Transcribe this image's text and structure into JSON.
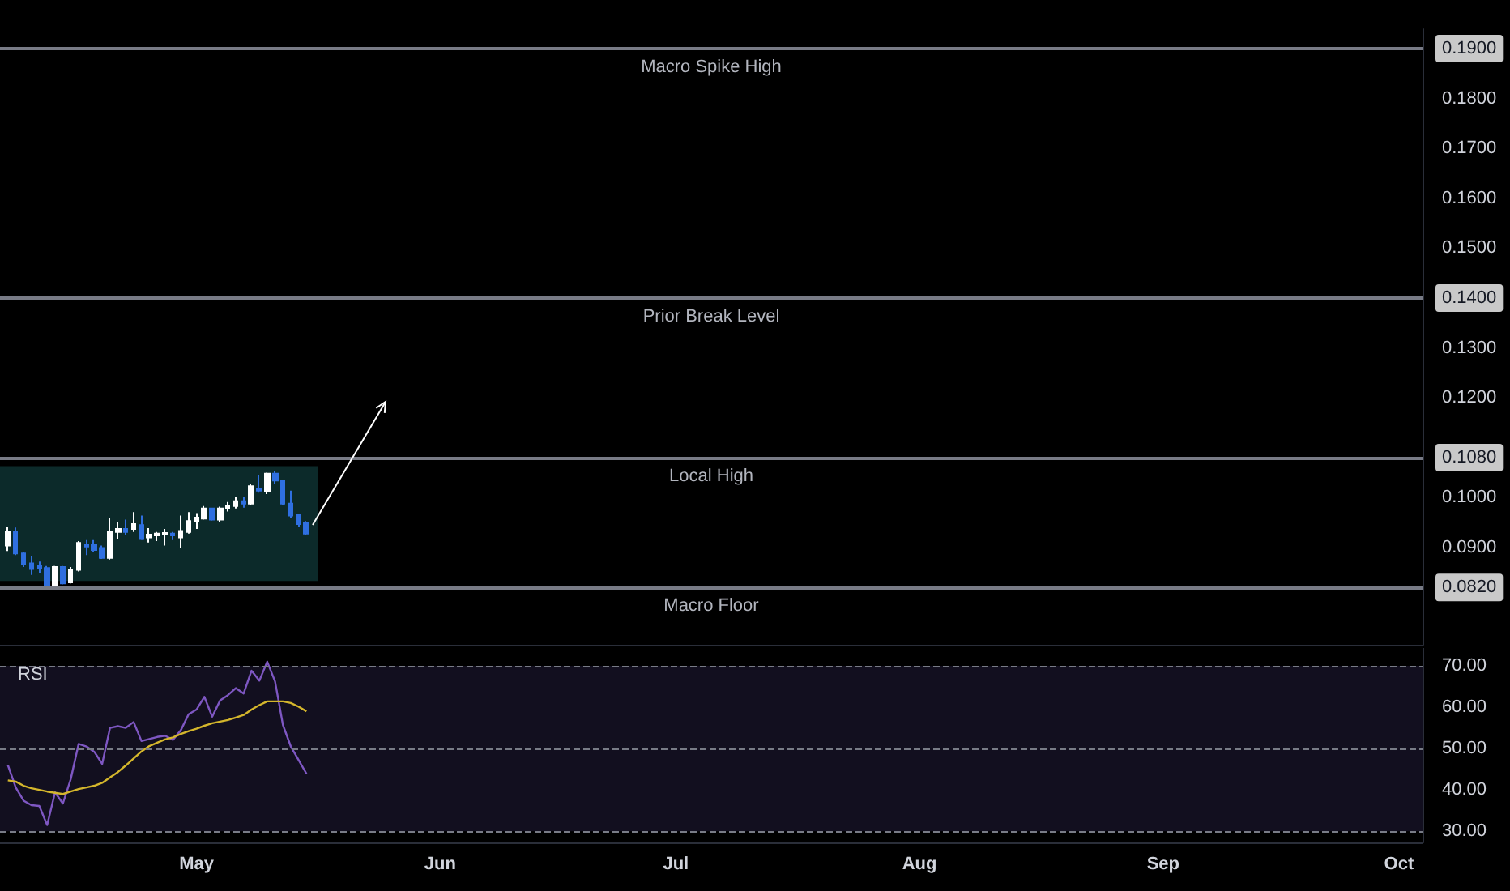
{
  "chart_data": [
    {
      "type": "candlestick",
      "tick_labels": "y",
      "x": [
        "--04-07",
        "--04-08",
        "--04-09",
        "--04-10",
        "--04-11",
        "--04-12",
        "--04-13",
        "--04-14",
        "--04-15",
        "--04-16",
        "--04-17",
        "--04-18",
        "--04-19",
        "--04-20",
        "--04-21",
        "--04-22",
        "--04-23",
        "--04-24",
        "--04-25",
        "--04-26",
        "--04-27",
        "--04-28",
        "--04-29",
        "--04-30",
        "--05-01",
        "--05-02",
        "--05-03",
        "--05-04",
        "--05-05",
        "--05-06",
        "--05-07",
        "--05-08",
        "--05-09",
        "--05-10",
        "--05-11",
        "--05-12",
        "--05-13",
        "--05-14",
        "--05-15"
      ],
      "ohlc": [
        [
          0.0904,
          0.0942,
          0.0893,
          0.0931
        ],
        [
          0.0931,
          0.094,
          0.0885,
          0.0888
        ],
        [
          0.0888,
          0.089,
          0.0861,
          0.0866
        ],
        [
          0.0868,
          0.0882,
          0.0845,
          0.0857
        ],
        [
          0.0863,
          0.0872,
          0.0848,
          0.0859
        ],
        [
          0.0859,
          0.0863,
          0.0818,
          0.0823
        ],
        [
          0.0823,
          0.0863,
          0.082,
          0.0861
        ],
        [
          0.0861,
          0.0863,
          0.0826,
          0.0828
        ],
        [
          0.083,
          0.0861,
          0.0828,
          0.0855
        ],
        [
          0.0855,
          0.0913,
          0.0852,
          0.0909
        ],
        [
          0.0906,
          0.0915,
          0.0885,
          0.0902
        ],
        [
          0.0906,
          0.0915,
          0.0891,
          0.0895
        ],
        [
          0.0899,
          0.0904,
          0.0877,
          0.0879
        ],
        [
          0.0879,
          0.096,
          0.0876,
          0.0931
        ],
        [
          0.0931,
          0.095,
          0.0917,
          0.0937
        ],
        [
          0.0937,
          0.0956,
          0.0926,
          0.0931
        ],
        [
          0.0937,
          0.0971,
          0.0931,
          0.0947
        ],
        [
          0.0945,
          0.0964,
          0.0915,
          0.0917
        ],
        [
          0.092,
          0.0939,
          0.091,
          0.0926
        ],
        [
          0.0924,
          0.0931,
          0.0913,
          0.0928
        ],
        [
          0.0926,
          0.0937,
          0.0904,
          0.0929
        ],
        [
          0.0928,
          0.0931,
          0.0915,
          0.0924
        ],
        [
          0.092,
          0.0964,
          0.0899,
          0.0933
        ],
        [
          0.0931,
          0.0971,
          0.0928,
          0.0953
        ],
        [
          0.0953,
          0.0969,
          0.0937,
          0.096
        ],
        [
          0.0958,
          0.0983,
          0.0956,
          0.0978
        ],
        [
          0.0978,
          0.098,
          0.0954,
          0.0956
        ],
        [
          0.0956,
          0.0982,
          0.0952,
          0.0978
        ],
        [
          0.0978,
          0.0991,
          0.0972,
          0.0983
        ],
        [
          0.0983,
          0.1001,
          0.0978,
          0.0993
        ],
        [
          0.0993,
          0.1001,
          0.098,
          0.0988
        ],
        [
          0.0988,
          0.1028,
          0.0985,
          0.1023
        ],
        [
          0.1018,
          0.1045,
          0.101,
          0.1014
        ],
        [
          0.1012,
          0.105,
          0.1007,
          0.1048
        ],
        [
          0.1048,
          0.1053,
          0.1028,
          0.1034
        ],
        [
          0.1034,
          0.1036,
          0.0985,
          0.0988
        ],
        [
          0.0988,
          0.1014,
          0.096,
          0.0964
        ],
        [
          0.0966,
          0.0967,
          0.0942,
          0.0947
        ],
        [
          0.0949,
          0.0953,
          0.0926,
          0.0928
        ]
      ],
      "xlim": [
        "--04-06",
        "--10-04"
      ],
      "ylim": [
        0.0705,
        0.1939
      ],
      "yticks": [
        {
          "value": 0.082,
          "label": "0.0820"
        },
        {
          "value": 0.09,
          "label": "0.0900"
        },
        {
          "value": 0.1,
          "label": "0.1000"
        },
        {
          "value": 0.108,
          "label": "0.1080"
        },
        {
          "value": 0.12,
          "label": "0.1200"
        },
        {
          "value": 0.13,
          "label": "0.1300"
        },
        {
          "value": 0.14,
          "label": "0.1400"
        },
        {
          "value": 0.15,
          "label": "0.1500"
        },
        {
          "value": 0.16,
          "label": "0.1600"
        },
        {
          "value": 0.17,
          "label": "0.1700"
        },
        {
          "value": 0.18,
          "label": "0.1800"
        },
        {
          "value": 0.19,
          "label": "0.1900"
        }
      ],
      "ref_lines": [
        {
          "axis": "y",
          "value": 0.19,
          "label": "Macro Spike High",
          "color": "#787b86"
        },
        {
          "axis": "y",
          "value": 0.14,
          "label": "Prior Break Level",
          "color": "#787b86"
        },
        {
          "axis": "y",
          "value": 0.108,
          "label": "Local High",
          "color": "#787b86"
        },
        {
          "axis": "y",
          "value": 0.082,
          "label": "Macro Floor",
          "color": "#787b86"
        }
      ],
      "bands": [
        {
          "axis": "y",
          "from": 0.0833,
          "to": 0.1063,
          "color": "#0c2a2a"
        }
      ]
    },
    {
      "type": "line",
      "title": "RSI",
      "x": [
        "--04-07",
        "--04-08",
        "--04-09",
        "--04-10",
        "--04-11",
        "--04-12",
        "--04-13",
        "--04-14",
        "--04-15",
        "--04-16",
        "--04-17",
        "--04-18",
        "--04-19",
        "--04-20",
        "--04-21",
        "--04-22",
        "--04-23",
        "--04-24",
        "--04-25",
        "--04-26",
        "--04-27",
        "--04-28",
        "--04-29",
        "--04-30",
        "--05-01",
        "--05-02",
        "--05-03",
        "--05-04",
        "--05-05",
        "--05-06",
        "--05-07",
        "--05-08",
        "--05-09",
        "--05-10",
        "--05-11",
        "--05-12",
        "--05-13",
        "--05-14",
        "--05-15"
      ],
      "series": [
        {
          "color": "#7e57c2",
          "values": [
            46,
            40.6,
            37.4,
            36.3,
            36.1,
            31.5,
            39.4,
            36.7,
            42.6,
            51.1,
            50.5,
            49.2,
            46.3,
            55,
            55.4,
            55,
            56.4,
            51.8,
            52.3,
            52.8,
            53.1,
            52.1,
            54.4,
            58.3,
            59.4,
            62.5,
            57.7,
            61.6,
            62.9,
            64.6,
            63.3,
            68.8,
            66.4,
            71,
            66.2,
            55.7,
            50.5,
            47.2,
            43.9
          ]
        },
        {
          "color": "#d4b62c",
          "values": [
            42.3,
            42,
            41,
            40.4,
            40,
            39.6,
            39.3,
            39,
            39.6,
            40.2,
            40.6,
            41,
            41.7,
            43,
            44.3,
            45.9,
            47.6,
            49.3,
            50.6,
            51.4,
            52.2,
            52.7,
            53.5,
            54.2,
            54.8,
            55.5,
            56.1,
            56.5,
            56.9,
            57.5,
            58.1,
            59.4,
            60.5,
            61.4,
            61.4,
            61.4,
            61,
            60.1,
            59
          ]
        }
      ],
      "xlim": [
        "--04-06",
        "--10-04"
      ],
      "xticks": [
        {
          "value": "--05-01",
          "label": "May"
        },
        {
          "value": "--06-01",
          "label": "Jun"
        },
        {
          "value": "--07-01",
          "label": "Jul"
        },
        {
          "value": "--08-01",
          "label": "Aug"
        },
        {
          "value": "--09-01",
          "label": "Sep"
        },
        {
          "value": "--10-01",
          "label": "Oct"
        }
      ],
      "ylim": [
        27.3,
        74.3
      ],
      "yticks": [
        {
          "value": 30,
          "label": "30.00"
        },
        {
          "value": 40,
          "label": "40.00"
        },
        {
          "value": 50,
          "label": "50.00"
        },
        {
          "value": 60,
          "label": "60.00"
        },
        {
          "value": 70,
          "label": "70.00"
        }
      ],
      "ref_lines": [
        {
          "axis": "y",
          "value": 70,
          "color": "#787b86",
          "line_style": "dashed"
        },
        {
          "axis": "y",
          "value": 50,
          "color": "#787b86",
          "line_style": "dashed"
        },
        {
          "axis": "y",
          "value": 30,
          "color": "#787b86",
          "line_style": "dashed"
        }
      ],
      "bands": [
        {
          "axis": "y",
          "from": 30,
          "to": 70,
          "color": "#120f1f"
        }
      ]
    }
  ]
}
